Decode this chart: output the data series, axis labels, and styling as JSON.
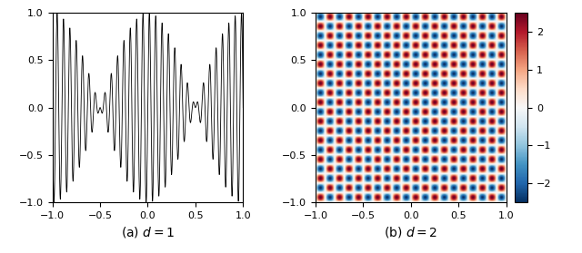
{
  "title_a": "(a) $d=1$",
  "title_b": "(b) $d=2$",
  "xlim": [
    -1.0,
    1.0
  ],
  "ylim": [
    -1.0,
    1.0
  ],
  "xticks": [
    -1.0,
    -0.5,
    0.0,
    0.5,
    1.0
  ],
  "yticks_1d": [
    -1.0,
    -0.5,
    0.0,
    0.5,
    1.0
  ],
  "yticks_2d": [
    -1.0,
    -0.5,
    0.0,
    0.5,
    1.0
  ],
  "colorbar_ticks": [
    -2,
    -1,
    0,
    1,
    2
  ],
  "colorbar_vmin": -2.5,
  "colorbar_vmax": 2.5,
  "k1d_freq": 30,
  "k1d_envelope": 1.0,
  "k2d": 10,
  "n_points_1d": 8000,
  "n_points_2d": 500,
  "cmap": "RdBu_r",
  "linecolor": "black",
  "linewidth": 0.6,
  "caption_fontsize": 10
}
